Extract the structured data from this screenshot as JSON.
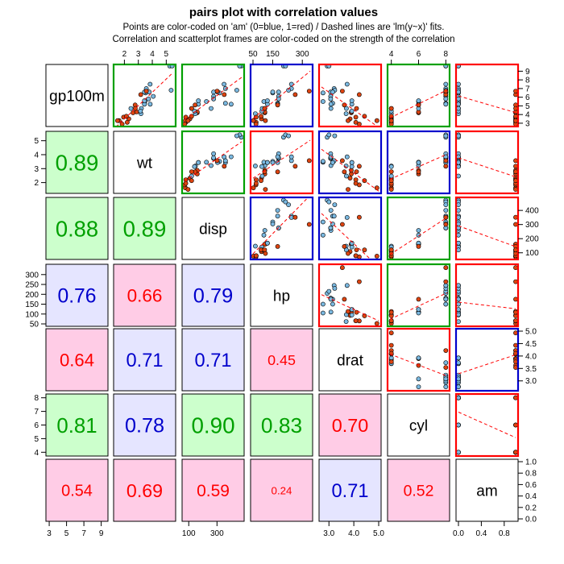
{
  "title": "pairs plot with correlation values",
  "subtitle_line1": "Points are color-coded on 'am' (0=blue, 1=red) / Dashed lines are 'lm(y~x)' fits.",
  "subtitle_line2": "Correlation and scatterplot frames are color-coded on the strength of the correlation",
  "colors": {
    "strong": "#00a000",
    "medium": "#0000cc",
    "weak": "#ff0000",
    "strong_fill": "#ccffcc",
    "medium_fill": "#e5e5ff",
    "weak_fill": "#ffcce6",
    "point_am0": "#7ab8e0",
    "point_am1": "#dd4411",
    "fit_line": "#ff0000"
  },
  "chart_data": {
    "type": "scatter",
    "variables": [
      "gp100m",
      "wt",
      "disp",
      "hp",
      "drat",
      "cyl",
      "am"
    ],
    "ranges": {
      "gp100m": [
        2.9,
        9.5
      ],
      "wt": [
        1.4,
        5.5
      ],
      "disp": [
        70,
        475
      ],
      "hp": [
        50,
        340
      ],
      "drat": [
        2.7,
        5.0
      ],
      "cyl": [
        3.9,
        8.1
      ],
      "am": [
        0,
        1
      ]
    },
    "ticks": {
      "gp100m": [
        "3",
        "5",
        "7",
        "9"
      ],
      "gp100m_right": [
        "3",
        "4",
        "5",
        "6",
        "7",
        "8",
        "9"
      ],
      "wt_top": [
        "2",
        "3",
        "4",
        "5"
      ],
      "wt_left": [
        "2",
        "3",
        "4",
        "5"
      ],
      "disp_top": [
        "50",
        "150",
        "300"
      ],
      "disp_bottom": [
        "100",
        "300"
      ],
      "disp_right": [
        "100",
        "200",
        "300",
        "400"
      ],
      "hp_left": [
        "50",
        "100",
        "150",
        "200",
        "250",
        "300"
      ],
      "drat_bottom": [
        "3.0",
        "4.0",
        "5.0"
      ],
      "drat_right": [
        "3.0",
        "3.5",
        "4.0",
        "4.5",
        "5.0"
      ],
      "cyl_top": [
        "4",
        "6",
        "8"
      ],
      "cyl_left": [
        "4",
        "5",
        "6",
        "7",
        "8"
      ],
      "am_bottom": [
        "0.0",
        "0.4",
        "0.8"
      ],
      "am_right": [
        "0.0",
        "0.2",
        "0.4",
        "0.6",
        "0.8",
        "1.0"
      ]
    },
    "correlations": [
      {
        "row": 1,
        "col": 0,
        "label": "0.89",
        "strength": "strong"
      },
      {
        "row": 2,
        "col": 0,
        "label": "0.88",
        "strength": "strong"
      },
      {
        "row": 2,
        "col": 1,
        "label": "0.89",
        "strength": "strong"
      },
      {
        "row": 3,
        "col": 0,
        "label": "0.76",
        "strength": "medium"
      },
      {
        "row": 3,
        "col": 1,
        "label": "0.66",
        "strength": "weak"
      },
      {
        "row": 3,
        "col": 2,
        "label": "0.79",
        "strength": "medium"
      },
      {
        "row": 4,
        "col": 0,
        "label": "0.64",
        "strength": "weak"
      },
      {
        "row": 4,
        "col": 1,
        "label": "0.71",
        "strength": "medium"
      },
      {
        "row": 4,
        "col": 2,
        "label": "0.71",
        "strength": "medium"
      },
      {
        "row": 4,
        "col": 3,
        "label": "0.45",
        "strength": "weak"
      },
      {
        "row": 5,
        "col": 0,
        "label": "0.81",
        "strength": "strong"
      },
      {
        "row": 5,
        "col": 1,
        "label": "0.78",
        "strength": "medium"
      },
      {
        "row": 5,
        "col": 2,
        "label": "0.90",
        "strength": "strong"
      },
      {
        "row": 5,
        "col": 3,
        "label": "0.83",
        "strength": "strong"
      },
      {
        "row": 5,
        "col": 4,
        "label": "0.70",
        "strength": "weak"
      },
      {
        "row": 6,
        "col": 0,
        "label": "0.54",
        "strength": "weak"
      },
      {
        "row": 6,
        "col": 1,
        "label": "0.69",
        "strength": "weak"
      },
      {
        "row": 6,
        "col": 2,
        "label": "0.59",
        "strength": "weak"
      },
      {
        "row": 6,
        "col": 3,
        "label": "0.24",
        "strength": "weak"
      },
      {
        "row": 6,
        "col": 4,
        "label": "0.71",
        "strength": "medium"
      },
      {
        "row": 6,
        "col": 5,
        "label": "0.52",
        "strength": "weak"
      }
    ],
    "observations": [
      {
        "gp100m": 4.2,
        "wt": 2.62,
        "disp": 160,
        "hp": 110,
        "drat": 3.9,
        "cyl": 6,
        "am": 1
      },
      {
        "gp100m": 4.3,
        "wt": 2.88,
        "disp": 160,
        "hp": 110,
        "drat": 3.9,
        "cyl": 6,
        "am": 1
      },
      {
        "gp100m": 3.5,
        "wt": 2.32,
        "disp": 108,
        "hp": 93,
        "drat": 3.85,
        "cyl": 4,
        "am": 1
      },
      {
        "gp100m": 4.7,
        "wt": 3.22,
        "disp": 258,
        "hp": 110,
        "drat": 3.08,
        "cyl": 6,
        "am": 0
      },
      {
        "gp100m": 5.3,
        "wt": 3.44,
        "disp": 360,
        "hp": 175,
        "drat": 3.15,
        "cyl": 8,
        "am": 0
      },
      {
        "gp100m": 5.5,
        "wt": 3.46,
        "disp": 225,
        "hp": 105,
        "drat": 2.76,
        "cyl": 6,
        "am": 0
      },
      {
        "gp100m": 7.0,
        "wt": 3.57,
        "disp": 360,
        "hp": 245,
        "drat": 3.21,
        "cyl": 8,
        "am": 0
      },
      {
        "gp100m": 4.1,
        "wt": 3.19,
        "disp": 147,
        "hp": 62,
        "drat": 3.69,
        "cyl": 4,
        "am": 0
      },
      {
        "gp100m": 4.4,
        "wt": 3.15,
        "disp": 141,
        "hp": 95,
        "drat": 3.92,
        "cyl": 4,
        "am": 0
      },
      {
        "gp100m": 5.2,
        "wt": 3.44,
        "disp": 168,
        "hp": 123,
        "drat": 3.92,
        "cyl": 6,
        "am": 0
      },
      {
        "gp100m": 5.6,
        "wt": 3.44,
        "disp": 168,
        "hp": 123,
        "drat": 3.92,
        "cyl": 6,
        "am": 0
      },
      {
        "gp100m": 6.1,
        "wt": 4.07,
        "disp": 276,
        "hp": 180,
        "drat": 3.07,
        "cyl": 8,
        "am": 0
      },
      {
        "gp100m": 5.8,
        "wt": 3.73,
        "disp": 276,
        "hp": 180,
        "drat": 3.07,
        "cyl": 8,
        "am": 0
      },
      {
        "gp100m": 6.6,
        "wt": 3.78,
        "disp": 276,
        "hp": 180,
        "drat": 3.07,
        "cyl": 8,
        "am": 0
      },
      {
        "gp100m": 9.6,
        "wt": 5.25,
        "disp": 472,
        "hp": 205,
        "drat": 2.93,
        "cyl": 8,
        "am": 0
      },
      {
        "gp100m": 9.6,
        "wt": 5.42,
        "disp": 460,
        "hp": 215,
        "drat": 3.0,
        "cyl": 8,
        "am": 0
      },
      {
        "gp100m": 6.8,
        "wt": 5.35,
        "disp": 440,
        "hp": 230,
        "drat": 3.23,
        "cyl": 8,
        "am": 0
      },
      {
        "gp100m": 3.1,
        "wt": 2.2,
        "disp": 79,
        "hp": 66,
        "drat": 4.08,
        "cyl": 4,
        "am": 1
      },
      {
        "gp100m": 3.3,
        "wt": 1.62,
        "disp": 76,
        "hp": 52,
        "drat": 4.93,
        "cyl": 4,
        "am": 1
      },
      {
        "gp100m": 2.9,
        "wt": 1.84,
        "disp": 71,
        "hp": 65,
        "drat": 4.22,
        "cyl": 4,
        "am": 1
      },
      {
        "gp100m": 4.7,
        "wt": 2.47,
        "disp": 120,
        "hp": 97,
        "drat": 3.7,
        "cyl": 4,
        "am": 0
      },
      {
        "gp100m": 6.5,
        "wt": 3.52,
        "disp": 318,
        "hp": 150,
        "drat": 2.76,
        "cyl": 8,
        "am": 0
      },
      {
        "gp100m": 6.6,
        "wt": 3.44,
        "disp": 304,
        "hp": 150,
        "drat": 3.15,
        "cyl": 8,
        "am": 0
      },
      {
        "gp100m": 7.5,
        "wt": 3.84,
        "disp": 350,
        "hp": 245,
        "drat": 3.73,
        "cyl": 8,
        "am": 0
      },
      {
        "gp100m": 5.2,
        "wt": 3.85,
        "disp": 400,
        "hp": 175,
        "drat": 3.08,
        "cyl": 8,
        "am": 0
      },
      {
        "gp100m": 3.7,
        "wt": 1.94,
        "disp": 79,
        "hp": 66,
        "drat": 4.08,
        "cyl": 4,
        "am": 1
      },
      {
        "gp100m": 3.8,
        "wt": 2.14,
        "disp": 120,
        "hp": 91,
        "drat": 4.43,
        "cyl": 4,
        "am": 1
      },
      {
        "gp100m": 3.3,
        "wt": 1.51,
        "disp": 95,
        "hp": 113,
        "drat": 3.77,
        "cyl": 4,
        "am": 1
      },
      {
        "gp100m": 6.3,
        "wt": 3.17,
        "disp": 351,
        "hp": 264,
        "drat": 4.22,
        "cyl": 8,
        "am": 1
      },
      {
        "gp100m": 5.1,
        "wt": 2.77,
        "disp": 145,
        "hp": 175,
        "drat": 3.62,
        "cyl": 6,
        "am": 1
      },
      {
        "gp100m": 6.7,
        "wt": 3.57,
        "disp": 301,
        "hp": 335,
        "drat": 3.54,
        "cyl": 8,
        "am": 1
      },
      {
        "gp100m": 4.7,
        "wt": 2.78,
        "disp": 121,
        "hp": 109,
        "drat": 4.11,
        "cyl": 4,
        "am": 1
      }
    ]
  }
}
